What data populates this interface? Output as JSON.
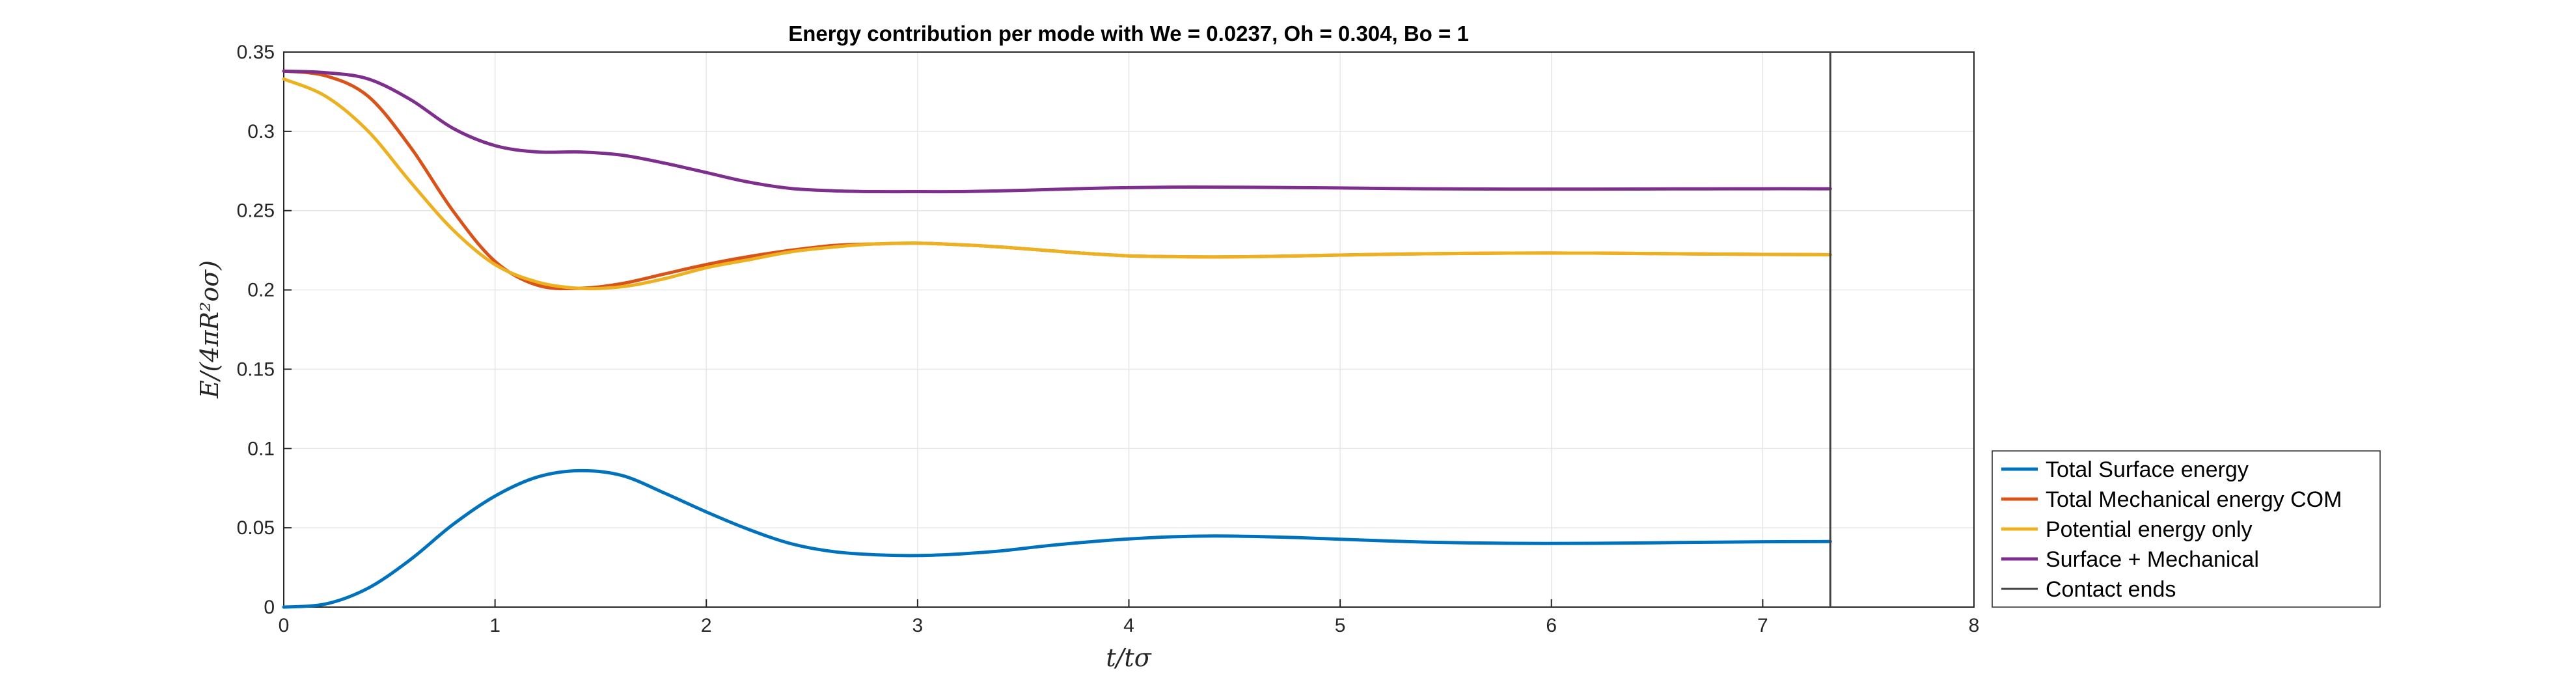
{
  "chart_data": {
    "type": "line",
    "title": "Energy contribution per mode with We = 0.0237, Oh = 0.304, Bo = 1",
    "xlabel": "t/tσ",
    "ylabel": "E/(4πR²oσ)",
    "xlim": [
      0,
      8
    ],
    "ylim": [
      0,
      0.35
    ],
    "xticks": [
      "0",
      "1",
      "2",
      "3",
      "4",
      "5",
      "6",
      "7",
      "8"
    ],
    "yticks": [
      "0",
      "0.05",
      "0.1",
      "0.15",
      "0.2",
      "0.25",
      "0.3",
      "0.35"
    ],
    "grid": true,
    "legend_location": "bottom-right outside",
    "vline": {
      "name": "Contact ends",
      "x": 7.32,
      "color": "#404040"
    },
    "series": [
      {
        "name": "Total Surface energy",
        "color": "#0072BD",
        "x": [
          0,
          0.2,
          0.4,
          0.6,
          0.8,
          1.0,
          1.2,
          1.4,
          1.6,
          1.8,
          2.0,
          2.2,
          2.4,
          2.6,
          2.8,
          3.0,
          3.2,
          3.4,
          3.6,
          3.8,
          4.0,
          4.2,
          4.4,
          4.6,
          4.8,
          5.0,
          5.4,
          5.8,
          6.2,
          6.6,
          7.0,
          7.32
        ],
        "y": [
          0.0,
          0.002,
          0.012,
          0.03,
          0.052,
          0.07,
          0.082,
          0.086,
          0.083,
          0.072,
          0.06,
          0.049,
          0.04,
          0.035,
          0.033,
          0.0325,
          0.0335,
          0.0355,
          0.0385,
          0.041,
          0.043,
          0.0443,
          0.0448,
          0.0445,
          0.0438,
          0.0428,
          0.041,
          0.0402,
          0.0402,
          0.0407,
          0.0412,
          0.0413
        ]
      },
      {
        "name": "Total Mechanical energy COM",
        "color": "#D95319",
        "x": [
          0,
          0.2,
          0.4,
          0.6,
          0.8,
          1.0,
          1.2,
          1.4,
          1.6,
          1.8,
          2.0,
          2.2,
          2.4,
          2.6,
          2.8,
          3.0,
          3.2,
          3.4,
          3.6,
          3.8,
          4.0,
          4.2,
          4.4,
          4.6,
          4.8,
          5.0,
          5.4,
          5.8,
          6.2,
          6.6,
          7.0,
          7.32
        ],
        "y": [
          0.338,
          0.335,
          0.322,
          0.29,
          0.25,
          0.218,
          0.203,
          0.201,
          0.204,
          0.21,
          0.216,
          0.221,
          0.225,
          0.228,
          0.229,
          0.2295,
          0.2285,
          0.227,
          0.225,
          0.223,
          0.2215,
          0.221,
          0.2208,
          0.221,
          0.2215,
          0.222,
          0.2228,
          0.2232,
          0.2232,
          0.2228,
          0.2224,
          0.2222
        ]
      },
      {
        "name": "Potential energy only",
        "color": "#EDB120",
        "x": [
          0,
          0.2,
          0.4,
          0.6,
          0.8,
          1.0,
          1.2,
          1.4,
          1.6,
          1.8,
          2.0,
          2.2,
          2.4,
          2.6,
          2.8,
          3.0,
          3.2,
          3.4,
          3.6,
          3.8,
          4.0,
          4.2,
          4.4,
          4.6,
          4.8,
          5.0,
          5.4,
          5.8,
          6.2,
          6.6,
          7.0,
          7.32
        ],
        "y": [
          0.333,
          0.322,
          0.3,
          0.268,
          0.238,
          0.216,
          0.205,
          0.201,
          0.202,
          0.207,
          0.214,
          0.219,
          0.224,
          0.227,
          0.229,
          0.2295,
          0.2285,
          0.227,
          0.225,
          0.223,
          0.2215,
          0.221,
          0.2208,
          0.221,
          0.2215,
          0.222,
          0.2228,
          0.2232,
          0.2232,
          0.2228,
          0.2224,
          0.2222
        ]
      },
      {
        "name": "Surface + Mechanical",
        "color": "#7E2F8E",
        "x": [
          0,
          0.2,
          0.4,
          0.6,
          0.8,
          1.0,
          1.2,
          1.4,
          1.6,
          1.8,
          2.0,
          2.2,
          2.4,
          2.6,
          2.8,
          3.0,
          3.2,
          3.4,
          3.6,
          3.8,
          4.0,
          4.2,
          4.4,
          4.6,
          4.8,
          5.0,
          5.4,
          5.8,
          6.2,
          6.6,
          7.0,
          7.32
        ],
        "y": [
          0.338,
          0.337,
          0.333,
          0.32,
          0.302,
          0.291,
          0.287,
          0.287,
          0.285,
          0.28,
          0.274,
          0.268,
          0.264,
          0.2625,
          0.262,
          0.262,
          0.262,
          0.2625,
          0.2632,
          0.264,
          0.2645,
          0.2648,
          0.2648,
          0.2647,
          0.2645,
          0.2643,
          0.2638,
          0.2636,
          0.2636,
          0.2637,
          0.2638,
          0.2638
        ]
      }
    ]
  }
}
